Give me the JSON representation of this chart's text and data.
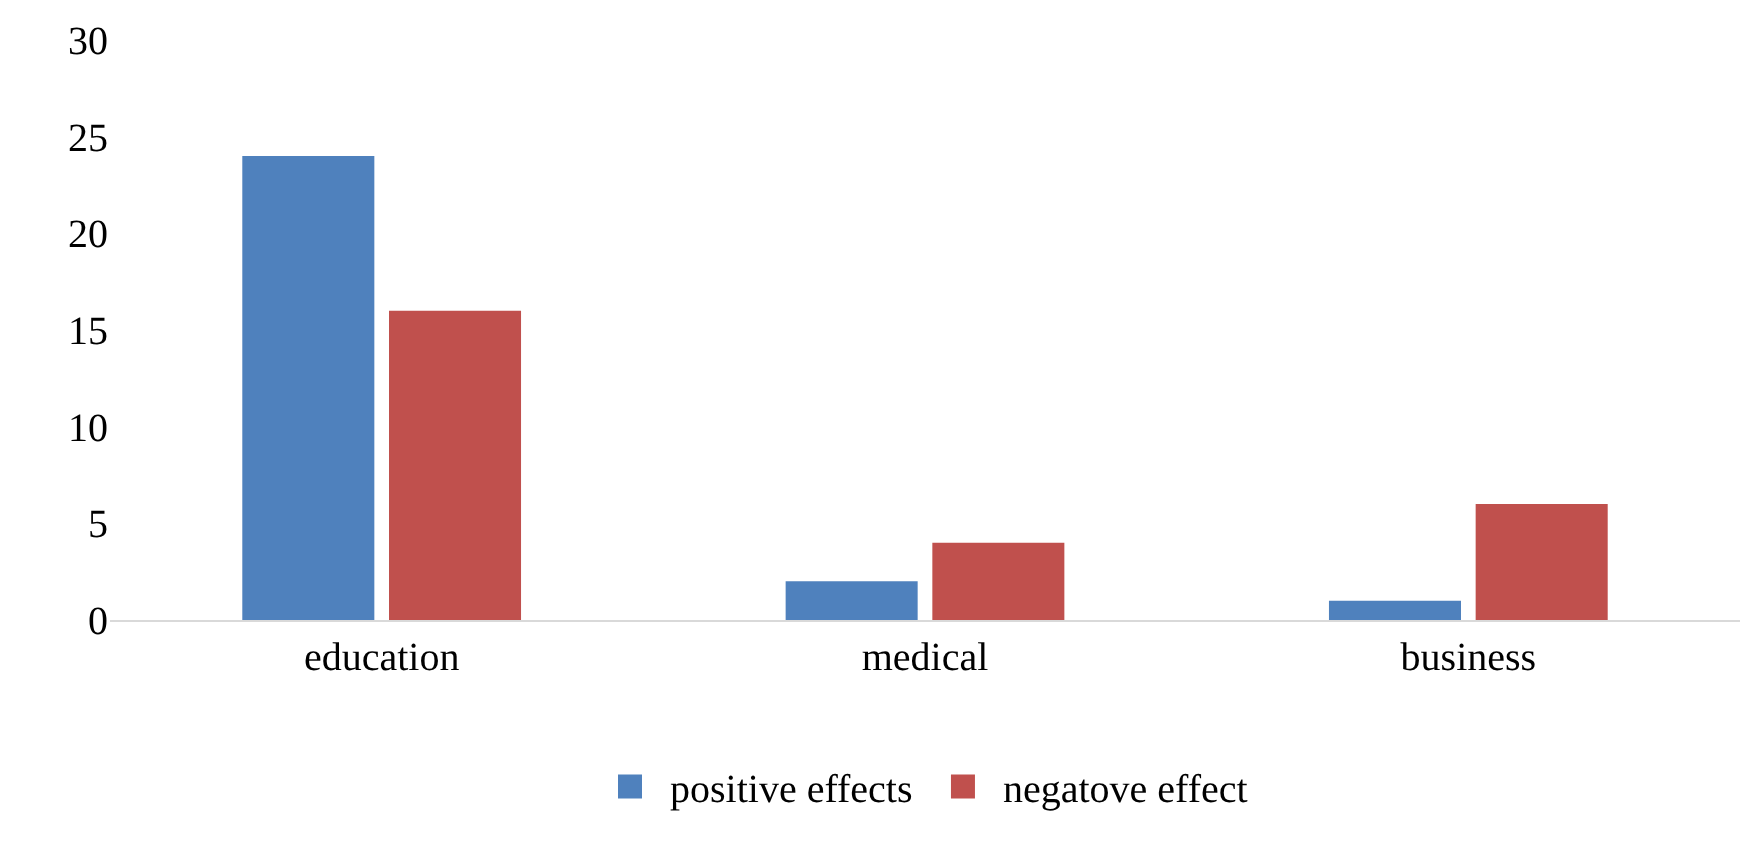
{
  "chart_data": {
    "type": "bar",
    "categories": [
      "education",
      "medical",
      "business"
    ],
    "series": [
      {
        "name": "positive effects",
        "color": "#4f81bd",
        "values": [
          24,
          2,
          1
        ]
      },
      {
        "name": "negatove effect",
        "color": "#c0504d",
        "values": [
          16,
          4,
          6
        ]
      }
    ],
    "ylim": [
      0,
      30
    ],
    "yticks": [
      0,
      5,
      10,
      15,
      20,
      25,
      30
    ],
    "grid": false,
    "legend": "bottom"
  }
}
